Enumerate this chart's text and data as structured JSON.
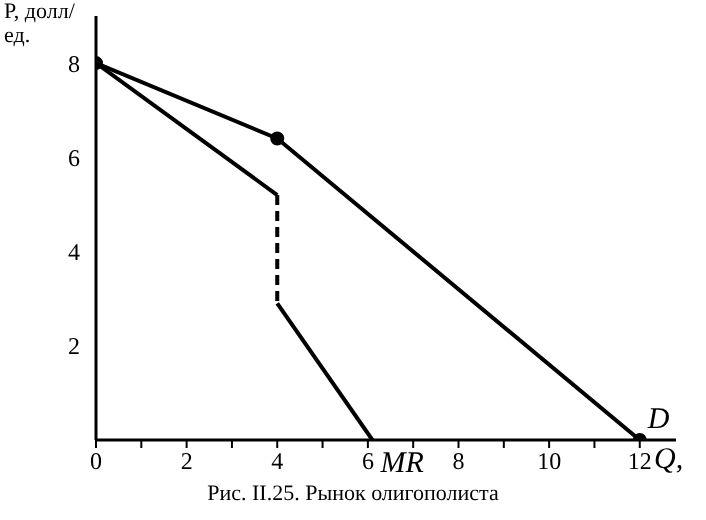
{
  "chart_data": {
    "type": "line",
    "xlabel": "Q,",
    "ylabel": "P, долл/ед.",
    "annotations": [
      "Рис. II.25. Рынок олигополиста"
    ],
    "xlim": [
      0,
      12.8
    ],
    "ylim": [
      0,
      9
    ],
    "xticks": [
      0,
      {
        "value": 1,
        "label": null
      },
      2,
      {
        "value": 3,
        "label": null
      },
      4,
      {
        "value": 5,
        "label": null
      },
      6,
      {
        "value": 7,
        "label": null
      },
      8,
      {
        "value": 9,
        "label": null
      },
      10,
      {
        "value": 11,
        "label": null
      },
      12
    ],
    "yticks": [
      2,
      4,
      6,
      8
    ],
    "series": [
      {
        "name": "D",
        "color": "#000000",
        "x": [
          0,
          4,
          12
        ],
        "values": [
          8,
          6.4,
          0
        ],
        "marker": "circle",
        "line_style": "solid"
      },
      {
        "color": "#000000",
        "x": [
          0,
          4
        ],
        "values": [
          8,
          5.2
        ],
        "marker": "none",
        "line_style": "solid"
      },
      {
        "color": "#000000",
        "x": [
          4,
          4
        ],
        "values": [
          5.2,
          2.9
        ],
        "marker": "none",
        "line_style": "dashed"
      },
      {
        "name": "MR",
        "color": "#000000",
        "x": [
          4,
          6.1
        ],
        "values": [
          2.9,
          0
        ],
        "marker": "none",
        "line_style": "solid"
      }
    ]
  }
}
